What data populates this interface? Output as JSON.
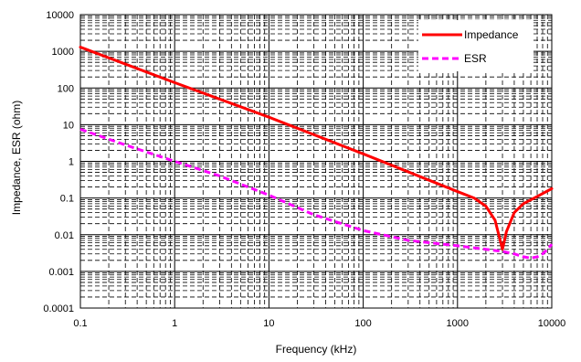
{
  "chart_data": {
    "type": "line",
    "x_scale": "log",
    "y_scale": "log",
    "xlabel": "Frequency  (kHz)",
    "ylabel": "Impedance, ESR (ohm)",
    "xlim": [
      0.1,
      10000
    ],
    "ylim": [
      0.0001,
      10000
    ],
    "x_ticks": [
      "0.1",
      "1",
      "10",
      "100",
      "1000",
      "10000"
    ],
    "y_ticks": [
      "0.0001",
      "0.001",
      "0.01",
      "0.1",
      "1",
      "10",
      "100",
      "1000",
      "10000"
    ],
    "grid": "major solid, minor dashed",
    "legend_position": "top-right",
    "series": [
      {
        "name": "Impedance",
        "color": "#ff0000",
        "dash": "solid",
        "points": [
          [
            0.1,
            1300
          ],
          [
            1,
            140
          ],
          [
            10,
            16
          ],
          [
            100,
            1.6
          ],
          [
            1000,
            0.15
          ],
          [
            1500,
            0.1
          ],
          [
            2000,
            0.06
          ],
          [
            2500,
            0.025
          ],
          [
            2800,
            0.008
          ],
          [
            3000,
            0.004
          ],
          [
            3300,
            0.012
          ],
          [
            4000,
            0.04
          ],
          [
            5000,
            0.07
          ],
          [
            7000,
            0.11
          ],
          [
            10000,
            0.18
          ]
        ]
      },
      {
        "name": "ESR",
        "color": "#ff00ff",
        "dash": "dashed",
        "points": [
          [
            0.1,
            7.5
          ],
          [
            0.3,
            2.8
          ],
          [
            1,
            1.0
          ],
          [
            3,
            0.4
          ],
          [
            10,
            0.12
          ],
          [
            30,
            0.035
          ],
          [
            100,
            0.013
          ],
          [
            300,
            0.007
          ],
          [
            1000,
            0.005
          ],
          [
            2000,
            0.004
          ],
          [
            3000,
            0.0035
          ],
          [
            4000,
            0.003
          ],
          [
            5000,
            0.0025
          ],
          [
            6000,
            0.0023
          ],
          [
            7000,
            0.0025
          ],
          [
            8000,
            0.003
          ],
          [
            9000,
            0.004
          ],
          [
            10000,
            0.0055
          ]
        ]
      }
    ]
  }
}
